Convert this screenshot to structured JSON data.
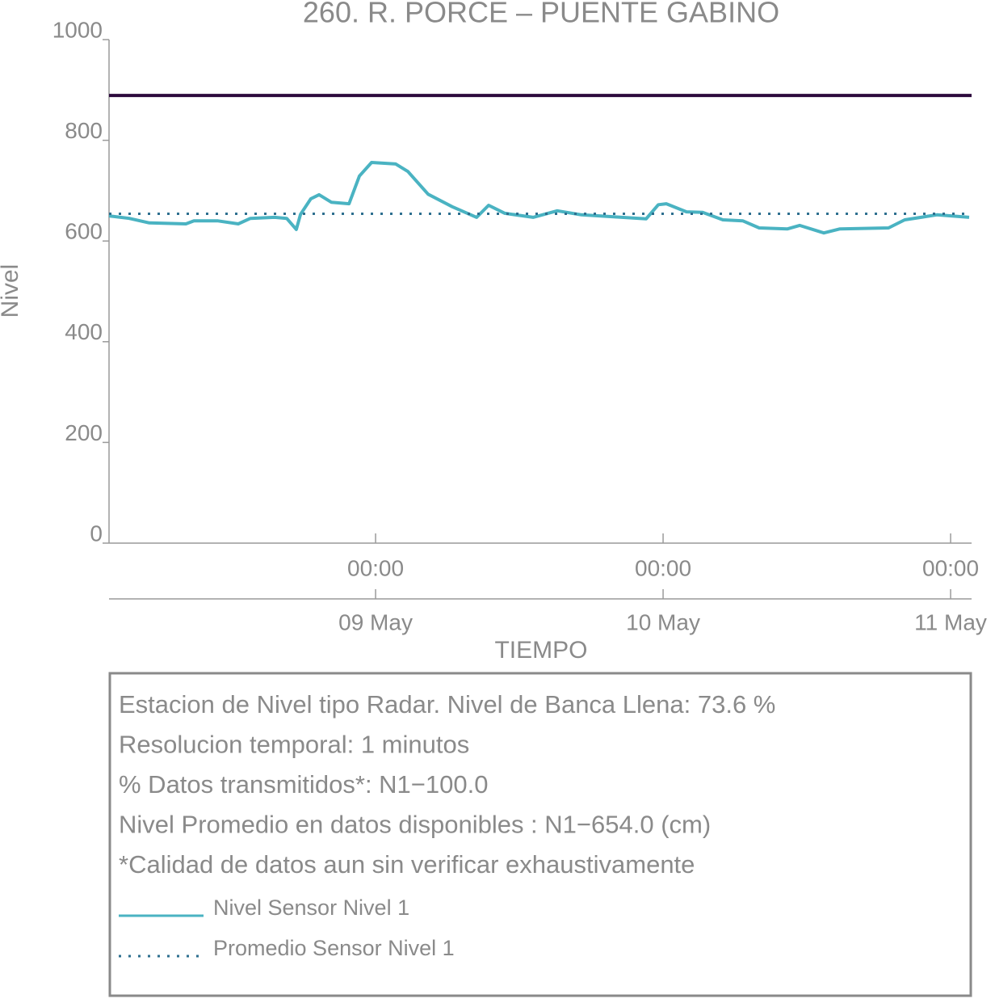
{
  "chart_data": {
    "type": "line",
    "title": "260. R. PORCE – PUENTE GABINO",
    "ylabel": "Nivel",
    "xlabel": "TIEMPO",
    "ylim": [
      0,
      1000
    ],
    "yticks": [
      0,
      200,
      400,
      600,
      800,
      1000
    ],
    "xlim": [
      "08 May 01:45",
      "11 May 01:45"
    ],
    "xticks": [
      {
        "value": "09 May 00:00",
        "label": "00:00"
      },
      {
        "value": "10 May 00:00",
        "label": "00:00"
      },
      {
        "value": "11 May 00:00",
        "label": "00:00"
      }
    ],
    "xtick_dates": [
      "09 May",
      "10 May",
      "11 May"
    ],
    "reference_line": {
      "value": 889,
      "color": "#2d0a3d"
    },
    "x": [
      "08 May 01:45",
      "08 May 03:26",
      "08 May 05:07",
      "08 May 08:10",
      "08 May 08:50",
      "08 May 10:51",
      "08 May 12:32",
      "08 May 13:33",
      "08 May 15:34",
      "08 May 16:35",
      "08 May 17:23",
      "08 May 17:44",
      "08 May 18:36",
      "08 May 19:17",
      "08 May 20:18",
      "08 May 21:47",
      "08 May 22:39",
      "08 May 23:40",
      "09 May 01:41",
      "09 May 02:42",
      "09 May 04:23",
      "09 May 06:24",
      "09 May 08:26",
      "09 May 09:26",
      "09 May 10:47",
      "09 May 13:09",
      "09 May 15:10",
      "09 May 17:11",
      "09 May 19:53",
      "09 May 22:35",
      "09 May 23:36",
      "10 May 00:16",
      "10 May 01:57",
      "10 May 03:18",
      "10 May 04:59",
      "10 May 06:40",
      "10 May 08:01",
      "10 May 10:23",
      "10 May 11:24",
      "10 May 13:25",
      "10 May 14:46",
      "10 May 18:49",
      "10 May 20:10",
      "10 May 22:51",
      "11 May 01:33"
    ],
    "series": [
      {
        "name": "Nivel Sensor Nivel 1",
        "color": "#4ab3c2",
        "values": [
          650,
          645,
          636,
          634,
          640,
          640,
          634,
          645,
          647,
          645,
          623,
          653,
          684,
          692,
          677,
          674,
          729,
          756,
          753,
          738,
          693,
          668,
          647,
          671,
          655,
          647,
          660,
          652,
          648,
          644,
          672,
          674,
          658,
          657,
          642,
          640,
          626,
          624,
          631,
          616,
          624,
          626,
          642,
          652,
          647
        ]
      },
      {
        "name": "Promedio Sensor Nivel 1",
        "color": "#2d6f8f",
        "style": "dotted",
        "value": 654
      }
    ],
    "info_lines": [
      "Estacion de Nivel tipo Radar. Nivel de Banca Llena: 73.6 %",
      "Resolucion temporal: 1 minutos",
      "% Datos transmitidos*: N1−100.0",
      "Nivel Promedio en datos disponibles : N1−654.0 (cm)",
      "*Calidad de datos aun sin verificar exhaustivamente"
    ]
  }
}
